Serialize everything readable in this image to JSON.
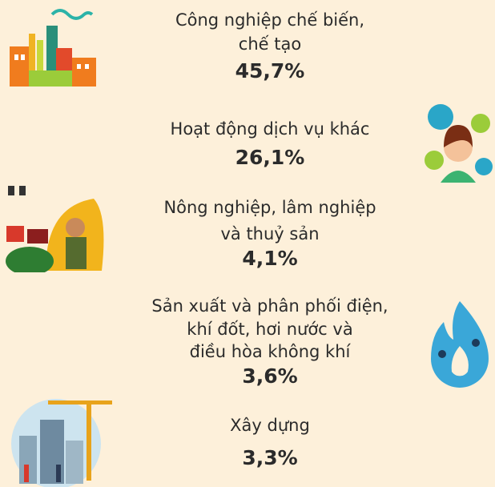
{
  "items": [
    {
      "label": [
        "Công nghiệp chế biến,",
        "chế tạo"
      ],
      "value": "45,7%"
    },
    {
      "label": [
        "Hoạt động dịch vụ khác"
      ],
      "value": "26,1%"
    },
    {
      "label": [
        "Nông nghiệp, lâm nghiệp",
        "và thuỷ sản"
      ],
      "value": "4,1%"
    },
    {
      "label": [
        "Sản xuất và phân phối điện,",
        "khí đốt, hơi nước và",
        "điều hòa không khí"
      ],
      "value": "3,6%"
    },
    {
      "label": [
        "Xây dựng"
      ],
      "value": "3,3%"
    }
  ]
}
